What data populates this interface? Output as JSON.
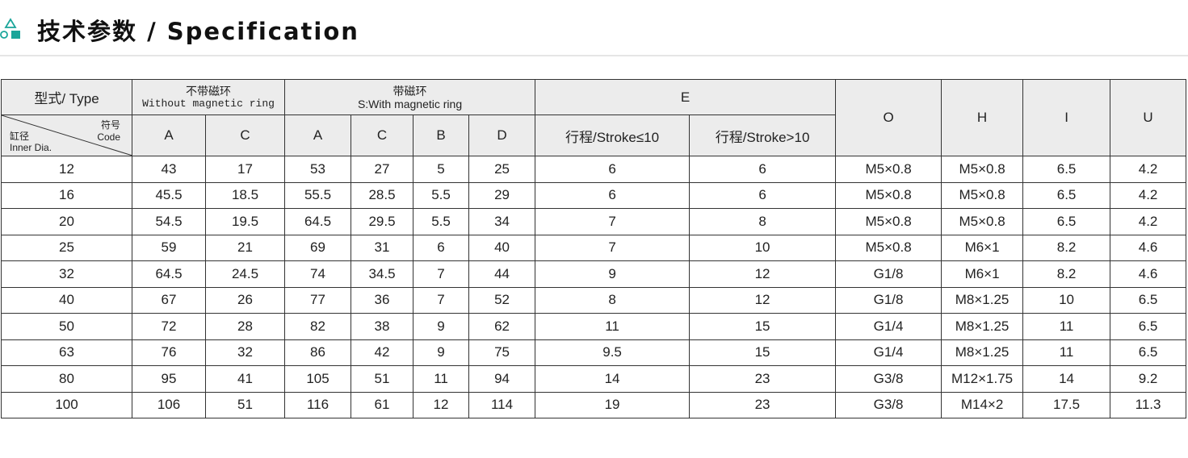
{
  "header": {
    "title": "技术参数 / Specification",
    "icon": "shapes-icon",
    "accent": "#1aa59a"
  },
  "table": {
    "type_label": "型式/ Type",
    "without_cn": "不带磁环",
    "without_en": "Without magnetic ring",
    "with_cn": "带磁环",
    "with_en": "S:With magnetic ring",
    "e": "E",
    "o": "O",
    "h": "H",
    "i": "I",
    "u": "U",
    "code_cn": "符号",
    "code_en": "Code",
    "dia_cn": "缸径",
    "dia_en": "Inner Dia.",
    "sub": [
      "A",
      "C",
      "A",
      "C",
      "B",
      "D",
      "行程/Stroke≤10",
      "行程/Stroke>10"
    ],
    "rows": [
      [
        "12",
        "43",
        "17",
        "53",
        "27",
        "5",
        "25",
        "6",
        "6",
        "M5×0.8",
        "M5×0.8",
        "6.5",
        "4.2"
      ],
      [
        "16",
        "45.5",
        "18.5",
        "55.5",
        "28.5",
        "5.5",
        "29",
        "6",
        "6",
        "M5×0.8",
        "M5×0.8",
        "6.5",
        "4.2"
      ],
      [
        "20",
        "54.5",
        "19.5",
        "64.5",
        "29.5",
        "5.5",
        "34",
        "7",
        "8",
        "M5×0.8",
        "M5×0.8",
        "6.5",
        "4.2"
      ],
      [
        "25",
        "59",
        "21",
        "69",
        "31",
        "6",
        "40",
        "7",
        "10",
        "M5×0.8",
        "M6×1",
        "8.2",
        "4.6"
      ],
      [
        "32",
        "64.5",
        "24.5",
        "74",
        "34.5",
        "7",
        "44",
        "9",
        "12",
        "G1/8",
        "M6×1",
        "8.2",
        "4.6"
      ],
      [
        "40",
        "67",
        "26",
        "77",
        "36",
        "7",
        "52",
        "8",
        "12",
        "G1/8",
        "M8×1.25",
        "10",
        "6.5"
      ],
      [
        "50",
        "72",
        "28",
        "82",
        "38",
        "9",
        "62",
        "11",
        "15",
        "G1/4",
        "M8×1.25",
        "11",
        "6.5"
      ],
      [
        "63",
        "76",
        "32",
        "86",
        "42",
        "9",
        "75",
        "9.5",
        "15",
        "G1/4",
        "M8×1.25",
        "11",
        "6.5"
      ],
      [
        "80",
        "95",
        "41",
        "105",
        "51",
        "11",
        "94",
        "14",
        "23",
        "G3/8",
        "M12×1.75",
        "14",
        "9.2"
      ],
      [
        "100",
        "106",
        "51",
        "116",
        "61",
        "12",
        "114",
        "19",
        "23",
        "G3/8",
        "M14×2",
        "17.5",
        "11.3"
      ]
    ]
  }
}
